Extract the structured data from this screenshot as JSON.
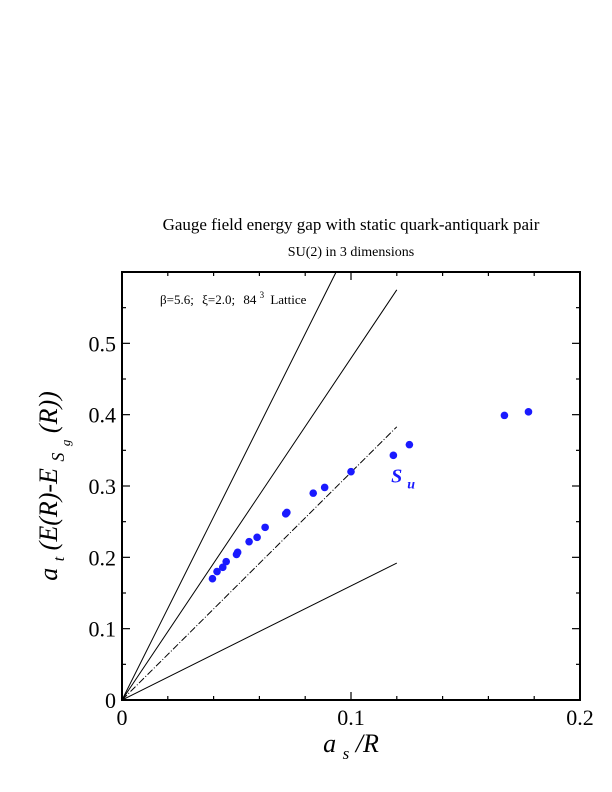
{
  "chart_data": {
    "type": "scatter",
    "title": "Gauge field energy gap with static quark-antiquark pair",
    "subtitle": "SU(2) in 3 dimensions",
    "annotation": {
      "beta": "β=5.6;",
      "xi": "ξ=2.0;",
      "lattice_base": "84",
      "lattice_exp": "3",
      "lattice_word": "Lattice"
    },
    "xlabel": {
      "a": "a",
      "sub": "s",
      "rest": "/R"
    },
    "ylabel": {
      "a": "a",
      "sub_t": "t",
      "mid": "(E(R)-E",
      "S": "S",
      "sub_g": "g",
      "end": "(R))"
    },
    "xlim": [
      0,
      0.2
    ],
    "ylim": [
      0,
      0.6
    ],
    "x_ticks": [
      {
        "value": 0,
        "label": "0"
      },
      {
        "value": 0.1,
        "label": "0.1"
      },
      {
        "value": 0.2,
        "label": "0.2"
      }
    ],
    "y_ticks": [
      {
        "value": 0,
        "label": "0"
      },
      {
        "value": 0.1,
        "label": "0.1"
      },
      {
        "value": 0.2,
        "label": "0.2"
      },
      {
        "value": 0.3,
        "label": "0.3"
      },
      {
        "value": 0.4,
        "label": "0.4"
      },
      {
        "value": 0.5,
        "label": "0.5"
      }
    ],
    "grid": false,
    "series": [
      {
        "name": "S_u",
        "label_main": "S",
        "label_sub": "u",
        "label_at": [
          0.1175,
          0.305
        ],
        "color": "#1a1aff",
        "points": [
          {
            "x": 0.0395,
            "y": 0.17
          },
          {
            "x": 0.0415,
            "y": 0.18
          },
          {
            "x": 0.044,
            "y": 0.186
          },
          {
            "x": 0.0455,
            "y": 0.194
          },
          {
            "x": 0.05,
            "y": 0.204
          },
          {
            "x": 0.0505,
            "y": 0.207
          },
          {
            "x": 0.0555,
            "y": 0.222
          },
          {
            "x": 0.059,
            "y": 0.228
          },
          {
            "x": 0.0625,
            "y": 0.242
          },
          {
            "x": 0.0715,
            "y": 0.261
          },
          {
            "x": 0.072,
            "y": 0.263
          },
          {
            "x": 0.0835,
            "y": 0.29
          },
          {
            "x": 0.0885,
            "y": 0.298
          },
          {
            "x": 0.1,
            "y": 0.32
          },
          {
            "x": 0.1185,
            "y": 0.343
          },
          {
            "x": 0.1255,
            "y": 0.358
          },
          {
            "x": 0.167,
            "y": 0.399
          },
          {
            "x": 0.1775,
            "y": 0.404
          }
        ]
      }
    ],
    "reference_lines": [
      {
        "x": [
          0,
          0.0935
        ],
        "y": [
          0,
          0.6
        ],
        "style": "solid"
      },
      {
        "x": [
          0,
          0.12
        ],
        "y": [
          0,
          0.575
        ],
        "style": "solid"
      },
      {
        "x": [
          0,
          0.12
        ],
        "y": [
          0,
          0.383
        ],
        "style": "dashdot"
      },
      {
        "x": [
          0,
          0.12
        ],
        "y": [
          0,
          0.192
        ],
        "style": "solid"
      }
    ]
  }
}
